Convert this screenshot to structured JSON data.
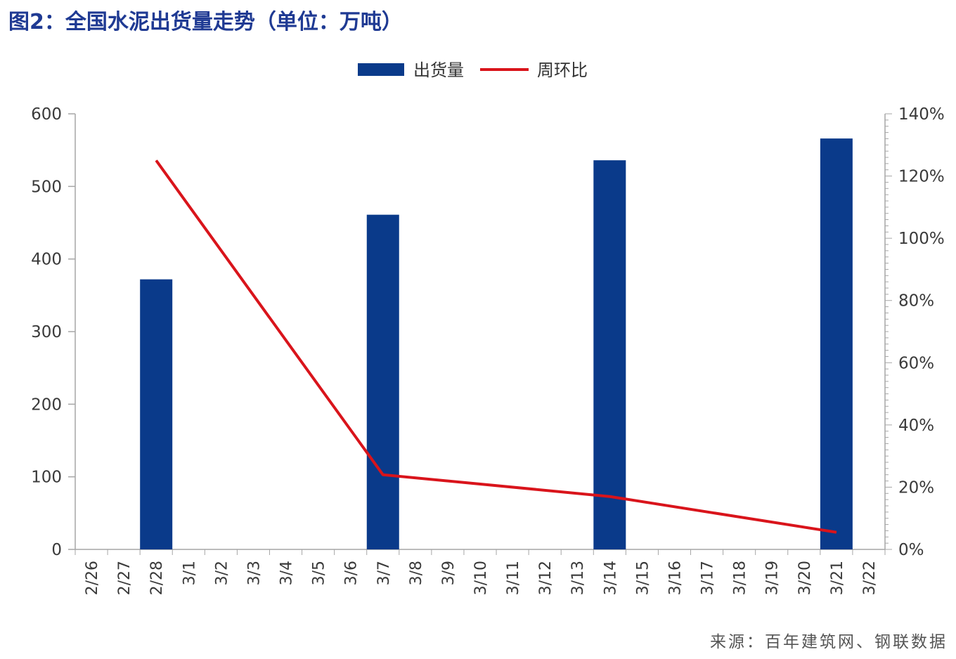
{
  "page_title": "图2：全国水泥出货量走势（单位：万吨）",
  "source_note": "来源：百年建筑网、钢联数据",
  "colors": {
    "title": "#1f3a93",
    "bar": "#0a3a8a",
    "line": "#d9141b",
    "axis": "#a6a6a6"
  },
  "chart_data": {
    "type": "bar",
    "categories": [
      "2/26",
      "2/27",
      "2/28",
      "3/1",
      "3/2",
      "3/3",
      "3/4",
      "3/5",
      "3/6",
      "3/7",
      "3/8",
      "3/9",
      "3/10",
      "3/11",
      "3/12",
      "3/13",
      "3/14",
      "3/15",
      "3/16",
      "3/17",
      "3/18",
      "3/19",
      "3/20",
      "3/21",
      "3/22"
    ],
    "series": [
      {
        "name": "出货量",
        "type": "bar",
        "axis": "left",
        "values": [
          0,
          0,
          372,
          0,
          0,
          0,
          0,
          0,
          0,
          461,
          0,
          0,
          0,
          0,
          0,
          0,
          536,
          0,
          0,
          0,
          0,
          0,
          0,
          566,
          0
        ]
      },
      {
        "name": "周环比",
        "type": "line",
        "axis": "right",
        "unit": "%",
        "points": [
          {
            "x": "2/28",
            "y": 125
          },
          {
            "x": "3/7",
            "y": 24
          },
          {
            "x": "3/14",
            "y": 17
          },
          {
            "x": "3/21",
            "y": 5.5
          }
        ]
      }
    ],
    "y_left": {
      "min": 0,
      "max": 600,
      "step": 100,
      "ticks": [
        "0",
        "100",
        "200",
        "300",
        "400",
        "500",
        "600"
      ]
    },
    "y_right": {
      "min": 0,
      "max": 140,
      "step": 20,
      "ticks": [
        "0%",
        "20%",
        "40%",
        "60%",
        "80%",
        "100%",
        "120%",
        "140%"
      ]
    },
    "legend": {
      "position": "top-center",
      "items": [
        "出货量",
        "周环比"
      ]
    },
    "grid": false
  }
}
